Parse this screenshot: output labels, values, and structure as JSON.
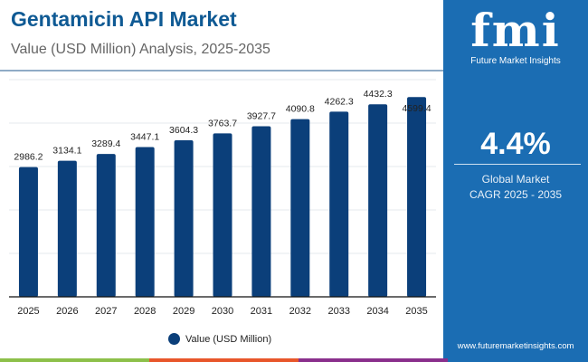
{
  "title": "Gentamicin API Market",
  "subtitle": "Value (USD Million) Analysis, 2025-2035",
  "panel": {
    "logo_text": "fmi",
    "brand": "Future Market Insights",
    "cagr": "4.4%",
    "label1": "Global Market",
    "label2": "CAGR 2025 - 2035",
    "url": "www.futuremarketinsights.com"
  },
  "colors": {
    "bar": "#0b3f7a",
    "title": "#0f5a94",
    "panel": "#1b6db3",
    "strip": [
      "#8dc04a",
      "#e8562a",
      "#8a2f8c",
      "#1b6db3"
    ]
  },
  "chart_data": {
    "type": "bar",
    "categories": [
      "2025",
      "2026",
      "2027",
      "2028",
      "2029",
      "2030",
      "2031",
      "2032",
      "2033",
      "2034",
      "2035"
    ],
    "series": [
      {
        "name": "Value (USD Million)",
        "values": [
          2986.2,
          3134.1,
          3289.4,
          3447.1,
          3604.3,
          3763.7,
          3927.7,
          4090.8,
          4262.3,
          4432.3,
          4599.4
        ]
      }
    ],
    "ylim": [
      0,
      5000
    ],
    "grid": true,
    "legend": "bottom"
  }
}
